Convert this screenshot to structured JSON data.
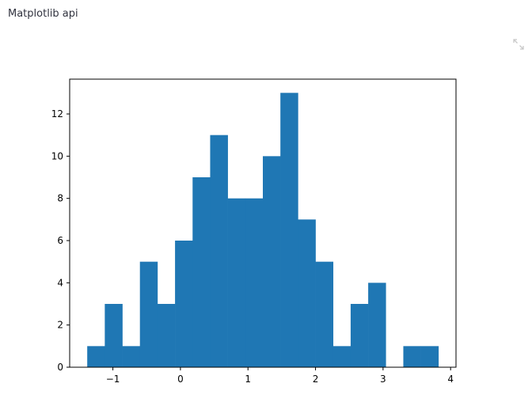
{
  "header": {
    "title": "Matplotlib api"
  },
  "toolbar": {
    "expand_icon": "fullscreen-expand-icon"
  },
  "colors": {
    "bar": "#1f77b4",
    "axis": "#000000",
    "icon": "#c8c8c8"
  },
  "chart_data": {
    "type": "bar",
    "bin_edges": [
      -1.38,
      -1.12,
      -0.86,
      -0.6,
      -0.34,
      -0.08,
      0.18,
      0.44,
      0.7,
      0.96,
      1.22,
      1.48,
      1.74,
      2.0,
      2.26,
      2.52,
      2.78,
      3.04,
      3.3,
      3.56,
      3.82
    ],
    "values": [
      1,
      3,
      1,
      5,
      3,
      6,
      9,
      11,
      8,
      8,
      10,
      13,
      7,
      5,
      1,
      3,
      4,
      0,
      1,
      1
    ],
    "xlim": [
      -1.64,
      4.08
    ],
    "ylim": [
      0,
      13.65
    ],
    "xticks": [
      -1,
      0,
      1,
      2,
      3,
      4
    ],
    "xtick_labels": [
      "−1",
      "0",
      "1",
      "2",
      "3",
      "4"
    ],
    "yticks": [
      0,
      2,
      4,
      6,
      8,
      10,
      12
    ],
    "ytick_labels": [
      "0",
      "2",
      "4",
      "6",
      "8",
      "10",
      "12"
    ],
    "title": "",
    "xlabel": "",
    "ylabel": "",
    "grid": false
  }
}
